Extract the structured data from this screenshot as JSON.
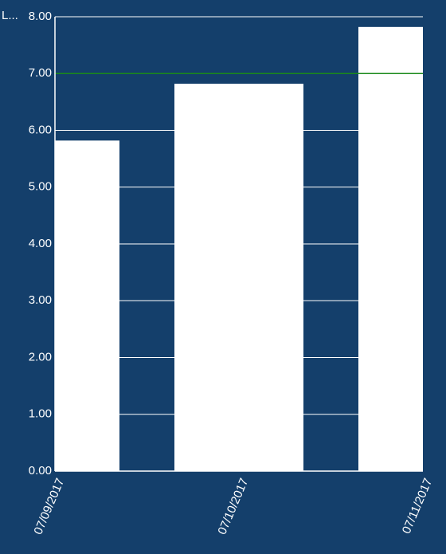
{
  "chart_data": {
    "type": "bar",
    "y_axis_label": "L...",
    "categories": [
      "07/09/2017",
      "07/10/2017",
      "07/11/2017"
    ],
    "values": [
      5.82,
      6.82,
      7.82
    ],
    "color": "#ffffff",
    "ylim": [
      0,
      8
    ],
    "yticks": [
      {
        "value": 0,
        "label": "0.00"
      },
      {
        "value": 1,
        "label": "1.00"
      },
      {
        "value": 2,
        "label": "2.00"
      },
      {
        "value": 3,
        "label": "3.00"
      },
      {
        "value": 4,
        "label": "4.00"
      },
      {
        "value": 5,
        "label": "5.00"
      },
      {
        "value": 6,
        "label": "6.00"
      },
      {
        "value": 7,
        "label": "7.00"
      },
      {
        "value": 8,
        "label": "8.00"
      }
    ],
    "grid": true,
    "limit_line": {
      "value": 7,
      "color": "#1a8a1a"
    },
    "background": "#143f6b"
  }
}
